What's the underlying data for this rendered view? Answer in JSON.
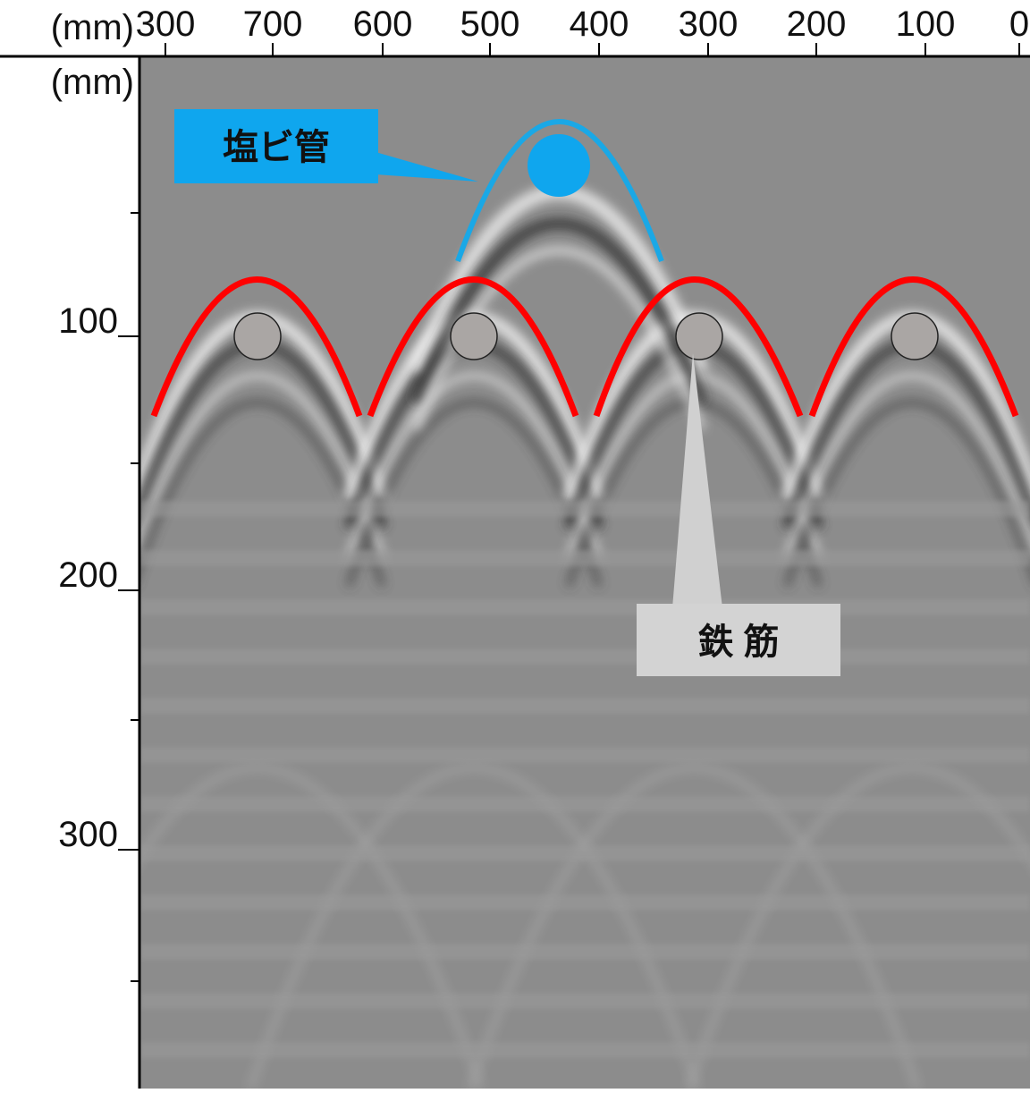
{
  "x_axis": {
    "unit": "(mm)",
    "ticks": [
      "300",
      "700",
      "600",
      "500",
      "400",
      "300",
      "200",
      "100",
      "0"
    ]
  },
  "y_axis": {
    "unit": "(mm)",
    "ticks": [
      "100",
      "200",
      "300"
    ]
  },
  "labels": {
    "pipe": "塩ビ管",
    "rebar": "鉄 筋"
  }
}
